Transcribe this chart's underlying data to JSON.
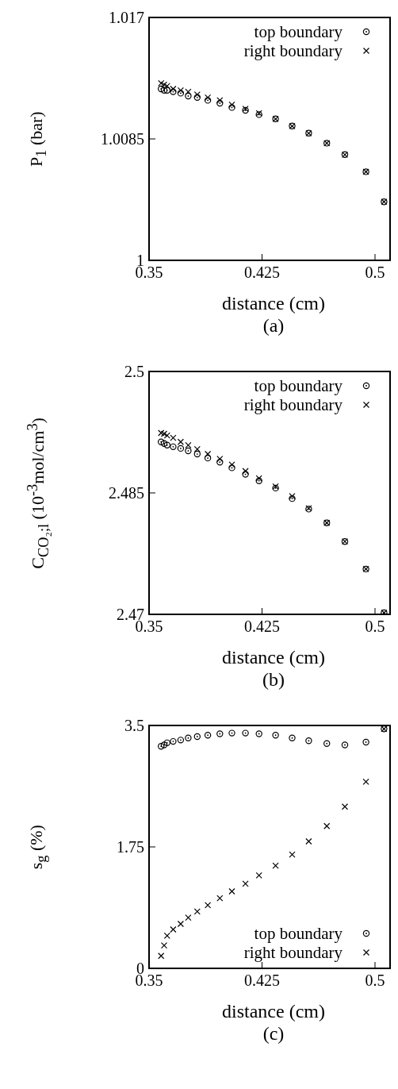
{
  "chart_data": [
    {
      "type": "scatter",
      "ylabel": "P$_{1}$ (bar)",
      "xlabel": "distance (cm)",
      "annotations": [
        "(a)"
      ],
      "xlim": [
        0.35,
        0.51
      ],
      "xticks": [
        0.35,
        0.425,
        0.5
      ],
      "ylim": [
        1,
        1.017
      ],
      "yticks": [
        1,
        1.0085,
        1.017
      ],
      "grid": false,
      "legend": "top right",
      "x": [
        0.358,
        0.36,
        0.362,
        0.366,
        0.371,
        0.376,
        0.382,
        0.389,
        0.397,
        0.405,
        0.414,
        0.423,
        0.434,
        0.445,
        0.456,
        0.468,
        0.48,
        0.494,
        0.506
      ],
      "series": [
        {
          "name": "top boundary",
          "color": "#000000",
          "marker": "circle",
          "values": [
            1.012,
            1.0119,
            1.0119,
            1.0118,
            1.0117,
            1.0115,
            1.0114,
            1.0112,
            1.011,
            1.0107,
            1.0105,
            1.0102,
            1.0099,
            1.0094,
            1.0089,
            1.0082,
            1.0074,
            1.0062,
            1.0041
          ]
        },
        {
          "name": "right boundary",
          "color": "#000000",
          "marker": "cross",
          "values": [
            1.0124,
            1.0123,
            1.0122,
            1.012,
            1.0119,
            1.0118,
            1.0116,
            1.0114,
            1.0112,
            1.0109,
            1.0106,
            1.0103,
            1.0099,
            1.0094,
            1.0089,
            1.0082,
            1.0074,
            1.0062,
            1.0041
          ]
        }
      ]
    },
    {
      "type": "scatter",
      "ylabel": "C$_{CO₂;l}$ (10$^{-3}$mol/cm$^{3}$)",
      "xlabel": "distance (cm)",
      "annotations": [
        "(b)"
      ],
      "xlim": [
        0.35,
        0.51
      ],
      "xticks": [
        0.35,
        0.425,
        0.5
      ],
      "ylim": [
        2.47,
        2.5
      ],
      "yticks": [
        2.47,
        2.485,
        2.5
      ],
      "grid": false,
      "legend": "top right",
      "x": [
        0.358,
        0.36,
        0.362,
        0.366,
        0.371,
        0.376,
        0.382,
        0.389,
        0.397,
        0.405,
        0.414,
        0.423,
        0.434,
        0.445,
        0.456,
        0.468,
        0.48,
        0.494,
        0.506
      ],
      "series": [
        {
          "name": "top boundary",
          "color": "#000000",
          "marker": "circle",
          "values": [
            2.4913,
            2.4911,
            2.4909,
            2.4907,
            2.4905,
            2.4902,
            2.4898,
            2.4893,
            2.4888,
            2.4881,
            2.4873,
            2.4865,
            2.4856,
            2.4843,
            2.483,
            2.4813,
            2.479,
            2.4756,
            2.4702
          ]
        },
        {
          "name": "right boundary",
          "color": "#000000",
          "marker": "cross",
          "values": [
            2.4924,
            2.4923,
            2.4921,
            2.4918,
            2.4913,
            2.4909,
            2.4904,
            2.4898,
            2.4892,
            2.4885,
            2.4877,
            2.4868,
            2.4858,
            2.4846,
            2.4831,
            2.4813,
            2.479,
            2.4756,
            2.4702
          ]
        }
      ]
    },
    {
      "type": "scatter",
      "ylabel": "s$_{g}$ (%)",
      "xlabel": "distance (cm)",
      "annotations": [
        "(c)"
      ],
      "xlim": [
        0.35,
        0.51
      ],
      "xticks": [
        0.35,
        0.425,
        0.5
      ],
      "ylim": [
        0,
        3.5
      ],
      "yticks": [
        0,
        1.75,
        3.5
      ],
      "grid": false,
      "legend": "bottom right",
      "x": [
        0.358,
        0.36,
        0.362,
        0.366,
        0.371,
        0.376,
        0.382,
        0.389,
        0.397,
        0.405,
        0.414,
        0.423,
        0.434,
        0.445,
        0.456,
        0.468,
        0.48,
        0.494,
        0.506
      ],
      "series": [
        {
          "name": "top boundary",
          "color": "#000000",
          "marker": "circle",
          "values": [
            3.2,
            3.22,
            3.25,
            3.27,
            3.29,
            3.32,
            3.34,
            3.36,
            3.38,
            3.39,
            3.39,
            3.38,
            3.36,
            3.32,
            3.28,
            3.24,
            3.22,
            3.26,
            3.45
          ]
        },
        {
          "name": "right boundary",
          "color": "#000000",
          "marker": "cross",
          "values": [
            0.18,
            0.33,
            0.47,
            0.56,
            0.64,
            0.73,
            0.82,
            0.91,
            1.01,
            1.11,
            1.22,
            1.34,
            1.48,
            1.64,
            1.83,
            2.05,
            2.33,
            2.69,
            3.45
          ]
        }
      ]
    }
  ]
}
